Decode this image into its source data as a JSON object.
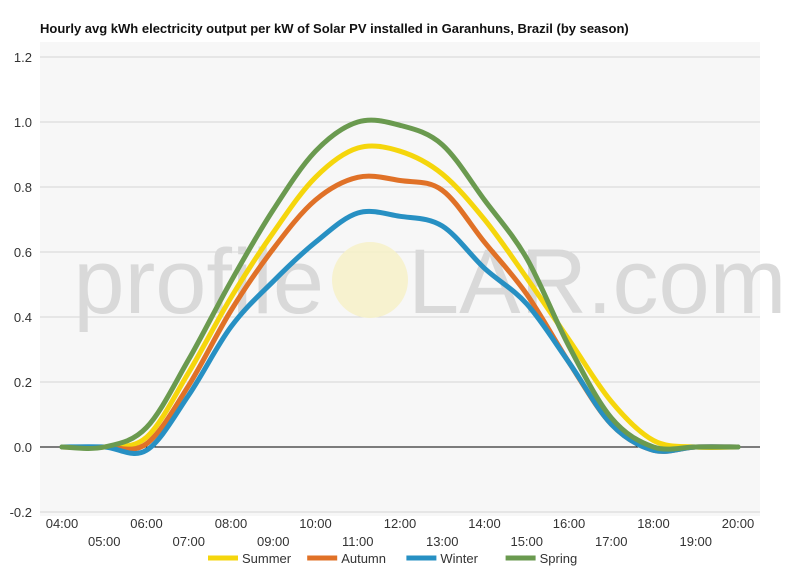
{
  "chart_data": {
    "type": "line",
    "title": "Hourly avg kWh electricity output per kW of Solar PV installed in Garanhuns, Brazil (by season)",
    "watermark": {
      "left": "profile",
      "right": "LAR.com"
    },
    "ylim": [
      -0.2,
      1.2
    ],
    "yticks": [
      -0.2,
      0.0,
      0.2,
      0.4,
      0.6,
      0.8,
      1.0,
      1.2
    ],
    "ytick_labels": [
      "-0.2",
      "0.0",
      "0.2",
      "0.4",
      "0.6",
      "0.8",
      "1.0",
      "1.2"
    ],
    "x_labels": [
      "04:00",
      "05:00",
      "06:00",
      "07:00",
      "08:00",
      "09:00",
      "10:00",
      "11:00",
      "12:00",
      "13:00",
      "14:00",
      "15:00",
      "16:00",
      "17:00",
      "18:00",
      "19:00",
      "20:00"
    ],
    "x": [
      4,
      5,
      6,
      7,
      8,
      9,
      10,
      11,
      12,
      13,
      14,
      15,
      16,
      17,
      18,
      19,
      20
    ],
    "grid": true,
    "legend_position": "bottom",
    "series": [
      {
        "name": "Summer",
        "color": "#f5d60c",
        "values": [
          0.0,
          0.0,
          0.03,
          0.23,
          0.46,
          0.66,
          0.83,
          0.92,
          0.91,
          0.84,
          0.7,
          0.52,
          0.33,
          0.14,
          0.02,
          0.0,
          0.0
        ]
      },
      {
        "name": "Autumn",
        "color": "#e07127",
        "values": [
          0.0,
          0.0,
          0.01,
          0.19,
          0.42,
          0.61,
          0.76,
          0.83,
          0.82,
          0.79,
          0.63,
          0.47,
          0.26,
          0.07,
          -0.01,
          0.0,
          0.0
        ]
      },
      {
        "name": "Winter",
        "color": "#2790c3",
        "values": [
          0.0,
          0.0,
          -0.01,
          0.16,
          0.37,
          0.51,
          0.63,
          0.72,
          0.71,
          0.68,
          0.55,
          0.44,
          0.26,
          0.07,
          -0.01,
          0.0,
          0.0
        ]
      },
      {
        "name": "Spring",
        "color": "#6a9a4f",
        "values": [
          0.0,
          0.0,
          0.06,
          0.27,
          0.51,
          0.73,
          0.91,
          1.0,
          0.99,
          0.93,
          0.76,
          0.58,
          0.31,
          0.09,
          0.0,
          0.0,
          0.0
        ]
      }
    ]
  }
}
